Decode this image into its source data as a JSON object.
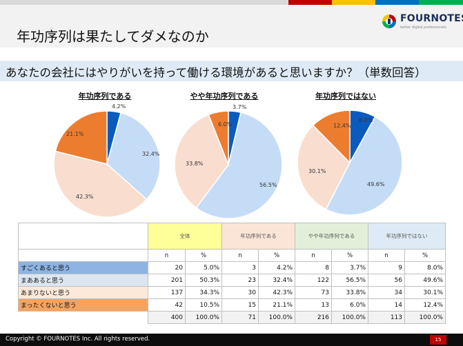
{
  "header": {
    "title": "年功序列は果たしてダメなのか",
    "logo_text": "FOURNOTES",
    "logo_sub": "better digital professionals",
    "stripe_colors": [
      "#c00000",
      "#ffc000",
      "#0070c0",
      "#00b050"
    ]
  },
  "question": "あなたの会社にはやりがいを持って働ける環境があると思いますか？（単数回答）",
  "chart_data": [
    {
      "type": "pie",
      "title": "年功序列である",
      "categories": [
        "すごくあると思う",
        "まああると思う",
        "あまりないと思う",
        "まったくないと思う"
      ],
      "values": [
        4.2,
        32.4,
        42.3,
        21.1
      ],
      "labels": [
        "4.2%",
        "32.4%",
        "42.3%",
        "21.1%"
      ],
      "colors": [
        "#0b5bbf",
        "#c5dcf7",
        "#f9ded0",
        "#ec7d2f"
      ]
    },
    {
      "type": "pie",
      "title": "やや年功序列である",
      "categories": [
        "すごくあると思う",
        "まああると思う",
        "あまりないと思う",
        "まったくないと思う"
      ],
      "values": [
        3.7,
        56.5,
        33.8,
        6.0
      ],
      "labels": [
        "3.7%",
        "56.5%",
        "33.8%",
        "6.0%"
      ],
      "colors": [
        "#0b5bbf",
        "#c5dcf7",
        "#f9ded0",
        "#ec7d2f"
      ]
    },
    {
      "type": "pie",
      "title": "年功序列ではない",
      "categories": [
        "すごくあると思う",
        "まああると思う",
        "あまりないと思う",
        "まったくないと思う"
      ],
      "values": [
        8.0,
        49.6,
        30.1,
        12.4
      ],
      "labels": [
        "8.0%",
        "49.6%",
        "30.1%",
        "12.4%"
      ],
      "colors": [
        "#0b5bbf",
        "#c5dcf7",
        "#f9ded0",
        "#ec7d2f"
      ]
    }
  ],
  "table": {
    "groups": [
      {
        "label": "全体",
        "color": "#ffff99"
      },
      {
        "label": "年功序列である",
        "color": "#fbe5d6"
      },
      {
        "label": "やや年功序列である",
        "color": "#e2f0d9"
      },
      {
        "label": "年功序列ではない",
        "color": "#deebf7"
      }
    ],
    "sub_headers": [
      "n",
      "%"
    ],
    "rows": [
      {
        "label": "すごくあると思う",
        "color": "#8db4e2",
        "cells": [
          "20",
          "5.0%",
          "3",
          "4.2%",
          "8",
          "3.7%",
          "9",
          "8.0%"
        ]
      },
      {
        "label": "まああると思う",
        "color": "#dce6f1",
        "cells": [
          "201",
          "50.3%",
          "23",
          "32.4%",
          "122",
          "56.5%",
          "56",
          "49.6%"
        ]
      },
      {
        "label": "あまりないと思う",
        "color": "#fde9d9",
        "cells": [
          "137",
          "34.3%",
          "30",
          "42.3%",
          "73",
          "33.8%",
          "34",
          "30.1%"
        ]
      },
      {
        "label": "まったくないと思う",
        "color": "#f4a460",
        "cells": [
          "42",
          "10.5%",
          "15",
          "21.1%",
          "13",
          "6.0%",
          "14",
          "12.4%"
        ]
      }
    ],
    "totals": [
      "400",
      "100.0%",
      "71",
      "100.0%",
      "216",
      "100.0%",
      "113",
      "100.0%"
    ]
  },
  "footer": {
    "copyright": "Copyright © FOURNOTES Inc. All rights reserved.",
    "page_number": "15"
  }
}
